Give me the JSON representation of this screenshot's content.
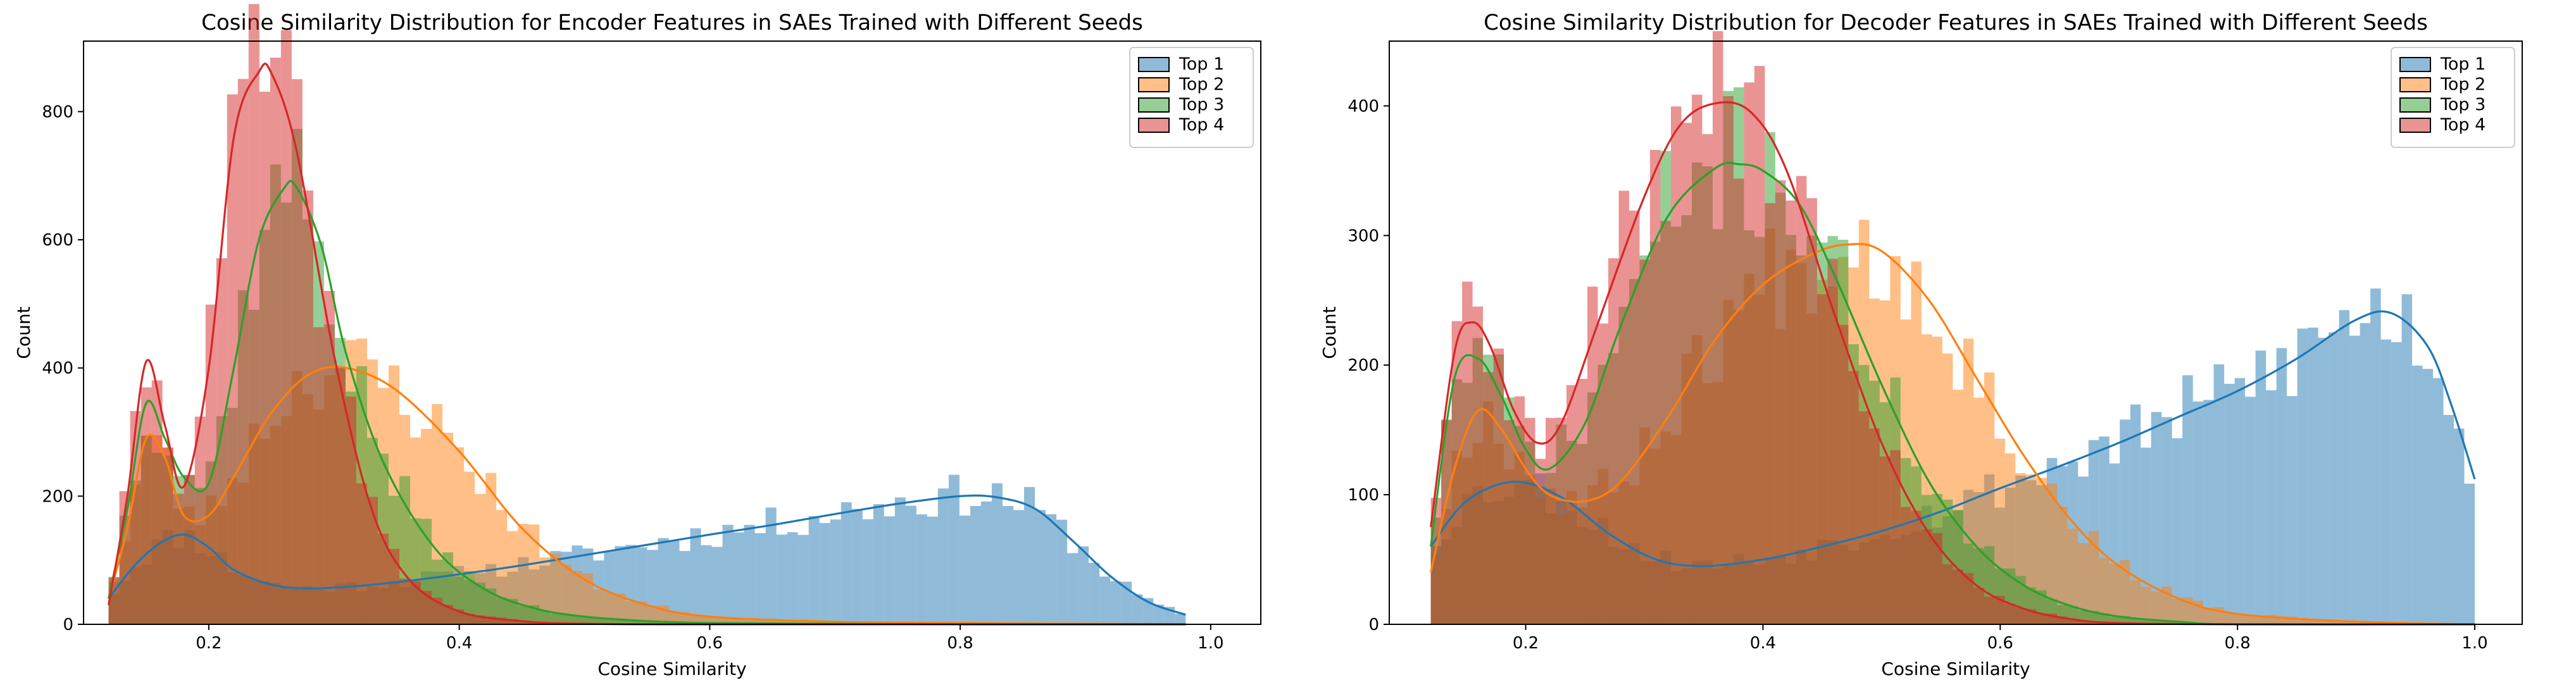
{
  "chart_data": [
    {
      "type": "histogram",
      "title": "Cosine Similarity Distribution for Encoder Features in SAEs Trained with Different Seeds",
      "xlabel": "Cosine Similarity",
      "ylabel": "Count",
      "xlim": [
        0.1,
        1.04
      ],
      "ylim": [
        0,
        910
      ],
      "xticks": [
        0.2,
        0.4,
        0.6,
        0.8,
        1.0
      ],
      "xtick_labels": [
        "0.2",
        "0.4",
        "0.6",
        "0.8",
        "1.0"
      ],
      "yticks": [
        0,
        200,
        400,
        600,
        800
      ],
      "ytick_labels": [
        "0",
        "200",
        "400",
        "600",
        "800"
      ],
      "legend_position": "top-right",
      "grid": false,
      "bin_range": [
        0.12,
        0.98
      ],
      "bins": 100,
      "series": [
        {
          "name": "Top 1",
          "color": "#1f77b4",
          "kde_x": [
            0.12,
            0.14,
            0.16,
            0.18,
            0.2,
            0.22,
            0.25,
            0.28,
            0.32,
            0.36,
            0.4,
            0.45,
            0.5,
            0.55,
            0.6,
            0.65,
            0.7,
            0.75,
            0.8,
            0.83,
            0.86,
            0.89,
            0.92,
            0.95,
            0.98
          ],
          "kde_y": [
            40,
            90,
            125,
            140,
            120,
            85,
            62,
            56,
            60,
            68,
            78,
            92,
            108,
            124,
            140,
            155,
            172,
            188,
            200,
            198,
            180,
            130,
            75,
            35,
            15
          ]
        },
        {
          "name": "Top 2",
          "color": "#ff7f0e",
          "kde_x": [
            0.12,
            0.135,
            0.15,
            0.165,
            0.18,
            0.2,
            0.22,
            0.25,
            0.28,
            0.31,
            0.35,
            0.4,
            0.45,
            0.5,
            0.55,
            0.6,
            0.7,
            0.8,
            0.9,
            0.98
          ],
          "kde_y": [
            40,
            150,
            290,
            260,
            170,
            170,
            230,
            330,
            390,
            400,
            365,
            270,
            150,
            70,
            30,
            12,
            4,
            2,
            1,
            0
          ]
        },
        {
          "name": "Top 3",
          "color": "#2ca02c",
          "kde_x": [
            0.12,
            0.135,
            0.15,
            0.165,
            0.18,
            0.2,
            0.22,
            0.24,
            0.26,
            0.27,
            0.29,
            0.31,
            0.34,
            0.38,
            0.42,
            0.46,
            0.5,
            0.55,
            0.6,
            0.7,
            0.8,
            0.98
          ],
          "kde_y": [
            40,
            180,
            345,
            290,
            230,
            220,
            400,
            600,
            680,
            682,
            590,
            420,
            250,
            120,
            55,
            25,
            12,
            5,
            2,
            1,
            0,
            0
          ]
        },
        {
          "name": "Top 4",
          "color": "#d62728",
          "kde_x": [
            0.12,
            0.135,
            0.15,
            0.165,
            0.18,
            0.2,
            0.22,
            0.24,
            0.25,
            0.27,
            0.3,
            0.33,
            0.36,
            0.4,
            0.45,
            0.5,
            0.6,
            0.98
          ],
          "kde_y": [
            30,
            200,
            410,
            310,
            215,
            400,
            760,
            862,
            860,
            740,
            420,
            180,
            70,
            20,
            5,
            1,
            0,
            0
          ]
        }
      ]
    },
    {
      "type": "histogram",
      "title": "Cosine Similarity Distribution for Decoder Features in SAEs Trained with Different Seeds",
      "xlabel": "Cosine Similarity",
      "ylabel": "Count",
      "xlim": [
        0.085,
        1.04
      ],
      "ylim": [
        0,
        450
      ],
      "xticks": [
        0.2,
        0.4,
        0.6,
        0.8,
        1.0
      ],
      "xtick_labels": [
        "0.2",
        "0.4",
        "0.6",
        "0.8",
        "1.0"
      ],
      "yticks": [
        0,
        100,
        200,
        300,
        400
      ],
      "ytick_labels": [
        "0",
        "100",
        "200",
        "300",
        "400"
      ],
      "legend_position": "top-right",
      "grid": false,
      "bin_range": [
        0.12,
        1.0
      ],
      "bins": 100,
      "series": [
        {
          "name": "Top 1",
          "color": "#1f77b4",
          "kde_x": [
            0.12,
            0.15,
            0.19,
            0.23,
            0.27,
            0.31,
            0.35,
            0.4,
            0.45,
            0.5,
            0.55,
            0.6,
            0.65,
            0.7,
            0.75,
            0.8,
            0.85,
            0.9,
            0.93,
            0.96,
            0.98,
            1.0
          ],
          "kde_y": [
            60,
            95,
            110,
            98,
            70,
            50,
            45,
            50,
            60,
            72,
            87,
            105,
            122,
            140,
            160,
            180,
            205,
            235,
            240,
            215,
            170,
            112
          ]
        },
        {
          "name": "Top 2",
          "color": "#ff7f0e",
          "kde_x": [
            0.12,
            0.14,
            0.16,
            0.18,
            0.2,
            0.22,
            0.25,
            0.28,
            0.32,
            0.36,
            0.4,
            0.44,
            0.47,
            0.5,
            0.54,
            0.58,
            0.62,
            0.66,
            0.7,
            0.75,
            0.8,
            0.9,
            1.0
          ],
          "kde_y": [
            40,
            120,
            165,
            150,
            120,
            100,
            95,
            110,
            160,
            220,
            262,
            285,
            293,
            288,
            250,
            190,
            130,
            80,
            45,
            20,
            8,
            2,
            0
          ]
        },
        {
          "name": "Top 3",
          "color": "#2ca02c",
          "kde_x": [
            0.12,
            0.14,
            0.16,
            0.18,
            0.2,
            0.22,
            0.25,
            0.28,
            0.32,
            0.36,
            0.38,
            0.4,
            0.43,
            0.46,
            0.5,
            0.54,
            0.58,
            0.62,
            0.66,
            0.7,
            0.75,
            0.8,
            1.0
          ],
          "kde_y": [
            60,
            190,
            205,
            175,
            135,
            120,
            155,
            230,
            315,
            352,
            355,
            350,
            325,
            270,
            185,
            110,
            60,
            30,
            14,
            6,
            2,
            0,
            0
          ]
        },
        {
          "name": "Top 4",
          "color": "#d62728",
          "kde_x": [
            0.12,
            0.14,
            0.155,
            0.17,
            0.19,
            0.21,
            0.23,
            0.26,
            0.3,
            0.33,
            0.36,
            0.39,
            0.42,
            0.46,
            0.5,
            0.54,
            0.58,
            0.62,
            0.66,
            0.7,
            0.8,
            1.0
          ],
          "kde_y": [
            75,
            210,
            233,
            215,
            165,
            140,
            155,
            230,
            330,
            385,
            402,
            395,
            350,
            240,
            140,
            70,
            30,
            12,
            4,
            1,
            0,
            0
          ]
        }
      ]
    }
  ]
}
